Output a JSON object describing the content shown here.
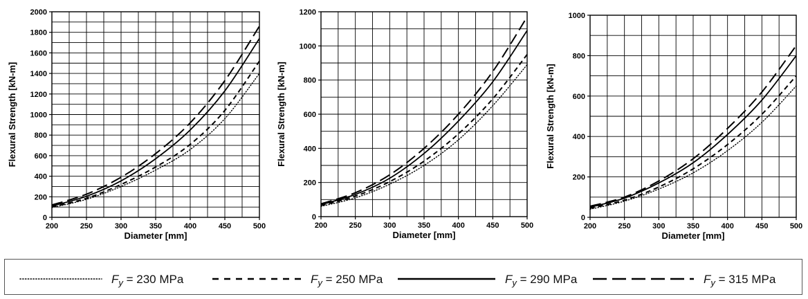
{
  "chart_data": [
    {
      "type": "line",
      "xlabel": "Diameter [mm]",
      "ylabel": "Flexural Strength [kN-m]",
      "xlim": [
        200,
        500
      ],
      "ylim": [
        0,
        2000
      ],
      "xticks": [
        200,
        250,
        300,
        350,
        400,
        450,
        500
      ],
      "yticks": [
        0,
        200,
        400,
        600,
        800,
        1000,
        1200,
        1400,
        1600,
        1800,
        2000
      ],
      "grid": true,
      "x": [
        200,
        250,
        300,
        350,
        400,
        450,
        500
      ],
      "series": [
        {
          "name": "Fy = 230 MPa",
          "style": "dotted",
          "values": [
            95,
            175,
            300,
            460,
            660,
            960,
            1400
          ]
        },
        {
          "name": "Fy = 250 MPa",
          "style": "short-dash",
          "values": [
            100,
            185,
            320,
            490,
            710,
            1040,
            1520
          ]
        },
        {
          "name": "Fy = 290 MPa",
          "style": "solid",
          "values": [
            110,
            205,
            355,
            570,
            850,
            1230,
            1740
          ]
        },
        {
          "name": "Fy = 315 MPa",
          "style": "long-dash",
          "values": [
            120,
            225,
            390,
            620,
            920,
            1330,
            1860
          ]
        }
      ]
    },
    {
      "type": "line",
      "xlabel": "Diameter [mm]",
      "ylabel": "Flexural Strength [kN-m]",
      "xlim": [
        200,
        500
      ],
      "ylim": [
        0,
        1200
      ],
      "xticks": [
        200,
        250,
        300,
        350,
        400,
        450,
        500
      ],
      "yticks": [
        0,
        200,
        400,
        600,
        800,
        1000,
        1200
      ],
      "grid": true,
      "x": [
        200,
        250,
        300,
        350,
        400,
        450,
        500
      ],
      "series": [
        {
          "name": "Fy = 230 MPa",
          "style": "dotted",
          "values": [
            60,
            110,
            190,
            300,
            450,
            650,
            890
          ]
        },
        {
          "name": "Fy = 250 MPa",
          "style": "short-dash",
          "values": [
            65,
            120,
            205,
            325,
            485,
            690,
            950
          ]
        },
        {
          "name": "Fy = 290 MPa",
          "style": "solid",
          "values": [
            70,
            130,
            225,
            370,
            560,
            790,
            1090
          ]
        },
        {
          "name": "Fy = 315 MPa",
          "style": "long-dash",
          "values": [
            75,
            140,
            245,
            400,
            600,
            850,
            1170
          ]
        }
      ]
    },
    {
      "type": "line",
      "xlabel": "Diameter [mm]",
      "ylabel": "Flexural Strength [kN-m]",
      "xlim": [
        200,
        500
      ],
      "ylim": [
        0,
        1000
      ],
      "xticks": [
        200,
        250,
        300,
        350,
        400,
        450,
        500
      ],
      "yticks": [
        0,
        200,
        400,
        600,
        800,
        1000
      ],
      "grid": true,
      "x": [
        200,
        250,
        300,
        350,
        400,
        450,
        500
      ],
      "series": [
        {
          "name": "Fy = 230 MPa",
          "style": "dotted",
          "values": [
            40,
            80,
            140,
            220,
            330,
            470,
            650
          ]
        },
        {
          "name": "Fy = 250 MPa",
          "style": "short-dash",
          "values": [
            45,
            85,
            150,
            240,
            360,
            510,
            700
          ]
        },
        {
          "name": "Fy = 290 MPa",
          "style": "solid",
          "values": [
            50,
            95,
            170,
            270,
            410,
            580,
            800
          ]
        },
        {
          "name": "Fy = 315 MPa",
          "style": "long-dash",
          "values": [
            55,
            100,
            180,
            290,
            440,
            620,
            850
          ]
        }
      ]
    }
  ],
  "legend": {
    "placement": "bottom",
    "items": [
      {
        "style": "dotted",
        "prefix": "F",
        "sub": "y",
        "label": " = 230 MPa"
      },
      {
        "style": "short-dash",
        "prefix": "F",
        "sub": "y",
        "label": " = 250 MPa"
      },
      {
        "style": "solid",
        "prefix": "F",
        "sub": "y",
        "label": " = 290 MPa"
      },
      {
        "style": "long-dash",
        "prefix": "F",
        "sub": "y",
        "label": " = 315 MPa"
      }
    ]
  },
  "colors": {
    "line": "#000000",
    "grid": "#000000",
    "border": "#555555"
  }
}
